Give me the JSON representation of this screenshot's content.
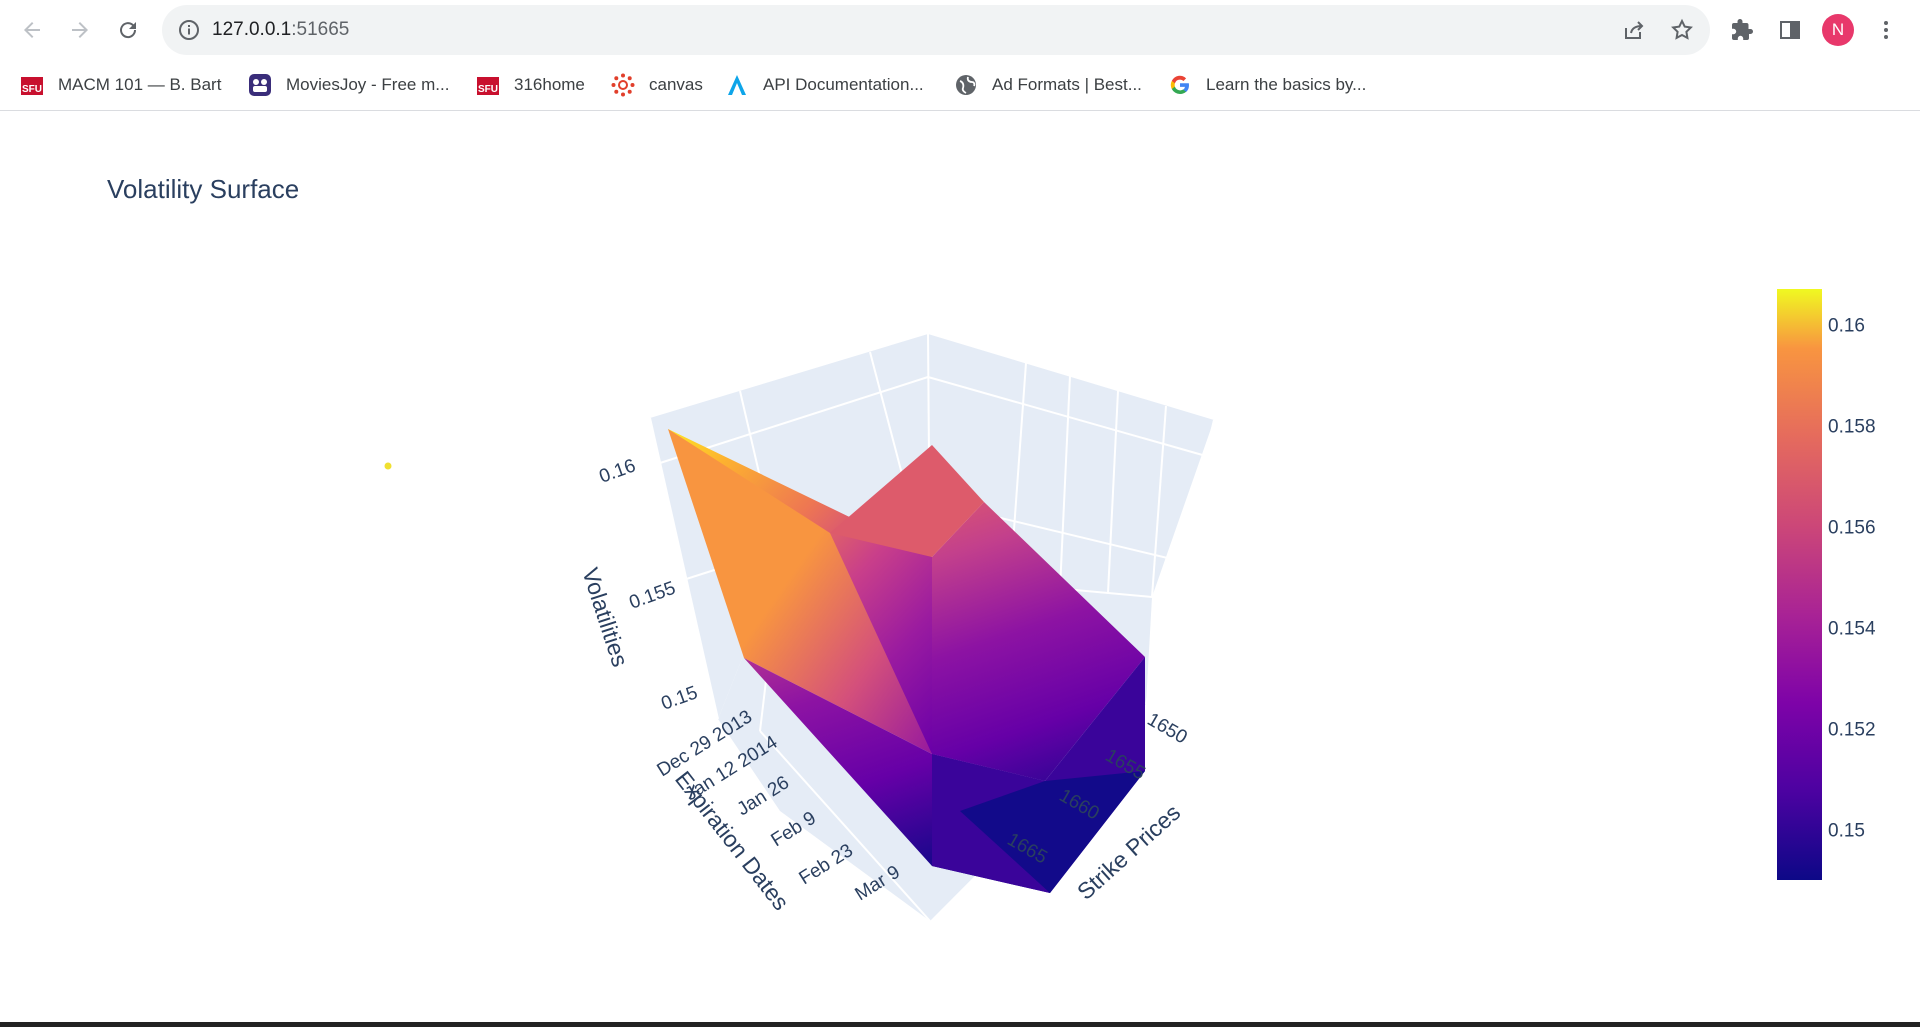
{
  "browser": {
    "url_host": "127.0.0.1",
    "url_port": ":51665",
    "profile_initial": "N",
    "colors": {
      "profile": "#e8386b",
      "omnibox_bg": "#f1f3f4"
    }
  },
  "bookmarks": [
    {
      "label": "MACM 101 — B. Bart",
      "icon": "sfu-icon"
    },
    {
      "label": "MoviesJoy - Free m...",
      "icon": "moviesjoy-icon"
    },
    {
      "label": "316home",
      "icon": "sfu-icon"
    },
    {
      "label": "canvas",
      "icon": "canvas-icon"
    },
    {
      "label": "API Documentation...",
      "icon": "api-docs-icon"
    },
    {
      "label": "Ad Formats | Best...",
      "icon": "globe-icon"
    },
    {
      "label": "Learn the basics by...",
      "icon": "google-icon"
    }
  ],
  "chart_data": {
    "type": "surface",
    "title": "Volatility Surface",
    "x_axis": {
      "label": "Expiration Dates",
      "ticks": [
        "Dec 29 2013",
        "Jan 12 2014",
        "Jan 26",
        "Feb 9",
        "Feb 23",
        "Mar 9"
      ]
    },
    "y_axis": {
      "label": "Strike Prices",
      "ticks": [
        "1650",
        "1655",
        "1660",
        "1665"
      ]
    },
    "z_axis": {
      "label": "Volatilities",
      "ticks": [
        "0.15",
        "0.155",
        "0.16"
      ]
    },
    "colorbar": {
      "ticks": [
        "0.16",
        "0.158",
        "0.156",
        "0.154",
        "0.152",
        "0.15"
      ],
      "range": [
        0.149,
        0.1607
      ]
    },
    "colorscale": "plasma",
    "surface_vertices": [
      {
        "expiration": "Dec 29 2013",
        "strike": 1665,
        "volatility": 0.1607
      },
      {
        "expiration": "Dec 29 2013",
        "strike": 1650,
        "volatility": 0.1555
      },
      {
        "expiration": "Mar 9",
        "strike": 1665,
        "volatility": 0.1535
      },
      {
        "expiration": "Mar 9",
        "strike": 1650,
        "volatility": 0.1505
      },
      {
        "expiration": "Feb 9",
        "strike": 1650,
        "volatility": 0.1515
      },
      {
        "expiration": "Feb 9",
        "strike": 1665,
        "volatility": 0.149
      }
    ],
    "marker": {
      "color": "#f0e030"
    }
  }
}
